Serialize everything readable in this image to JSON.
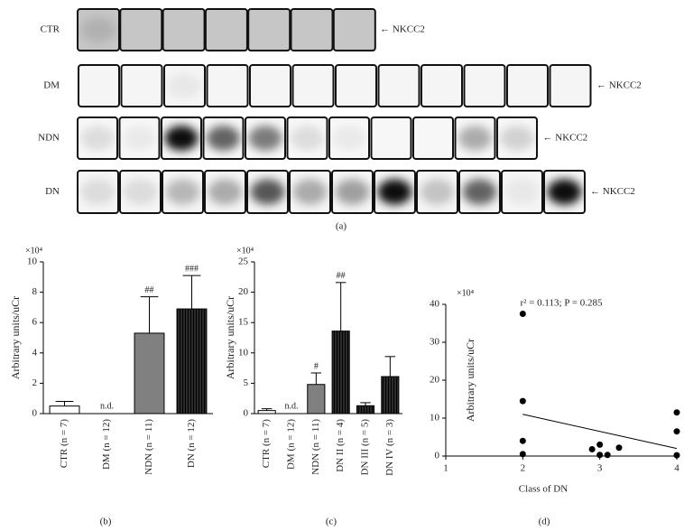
{
  "blot": {
    "caption": "(a)",
    "rows": [
      {
        "label": "CTR",
        "marker": "← NKCC2",
        "lanes": 7
      },
      {
        "label": "DM",
        "marker": "← NKCC2",
        "lanes": 12
      },
      {
        "label": "NDN",
        "marker": "← NKCC2",
        "lanes": 11
      },
      {
        "label": "DN",
        "marker": "← NKCC2",
        "lanes": 12
      }
    ]
  },
  "chart_data": [
    {
      "type": "bar",
      "caption": "(b)",
      "ylabel": "Arbitrary units/uCr",
      "y_multiplier": "×10⁴",
      "categories": [
        "CTR (n = 7)",
        "DM (n = 12)",
        "NDN (n = 11)",
        "DN (n = 12)"
      ],
      "values": [
        0.5,
        null,
        5.3,
        6.9
      ],
      "errors": [
        0.3,
        null,
        2.4,
        2.2
      ],
      "bar_labels": [
        null,
        "n.d.",
        "##",
        "###"
      ],
      "colors": [
        "#ffffff",
        "#ffffff",
        "#808080",
        "#2b2b2b"
      ],
      "ylim": [
        0,
        10
      ],
      "yticks": [
        0,
        2,
        4,
        6,
        8,
        10
      ]
    },
    {
      "type": "bar",
      "caption": "(c)",
      "ylabel": "Arbitrary units/uCr",
      "y_multiplier": "×10⁴",
      "categories": [
        "CTR (n = 7)",
        "DM (n = 12)",
        "NDN (n = 11)",
        "DN II (n = 4)",
        "DN III (n = 5)",
        "DN IV (n = 3)"
      ],
      "values": [
        0.5,
        null,
        4.8,
        13.6,
        1.3,
        6.1
      ],
      "errors": [
        0.3,
        null,
        1.9,
        8,
        0.5,
        3.3
      ],
      "bar_labels": [
        null,
        "n.d.",
        "#",
        "##",
        null,
        null
      ],
      "colors": [
        "#ffffff",
        "#ffffff",
        "#808080",
        "#2b2b2b",
        "#2b2b2b",
        "#2b2b2b"
      ],
      "ylim": [
        0,
        25
      ],
      "yticks": [
        0,
        5,
        10,
        15,
        20,
        25
      ]
    },
    {
      "type": "scatter",
      "caption": "(d)",
      "xlabel": "Class of DN",
      "ylabel": "Arbitrary units/uCr",
      "y_multiplier": "×10⁴",
      "annotation": "r² = 0.113; P = 0.285",
      "color": "#000000",
      "x": [
        2,
        2,
        2,
        2,
        2.9,
        3,
        3,
        3.1,
        3.25,
        4,
        4,
        4
      ],
      "y": [
        37.5,
        14.5,
        4,
        0.5,
        1.8,
        3,
        0.3,
        0.3,
        2.2,
        11.5,
        6.5,
        0.2
      ],
      "fit": {
        "x": [
          2,
          4
        ],
        "y": [
          11,
          2
        ]
      },
      "xlim": [
        1,
        4
      ],
      "xticks": [
        1,
        2,
        3,
        4
      ],
      "ylim": [
        0,
        40
      ],
      "yticks": [
        0,
        10,
        20,
        30,
        40
      ]
    }
  ]
}
